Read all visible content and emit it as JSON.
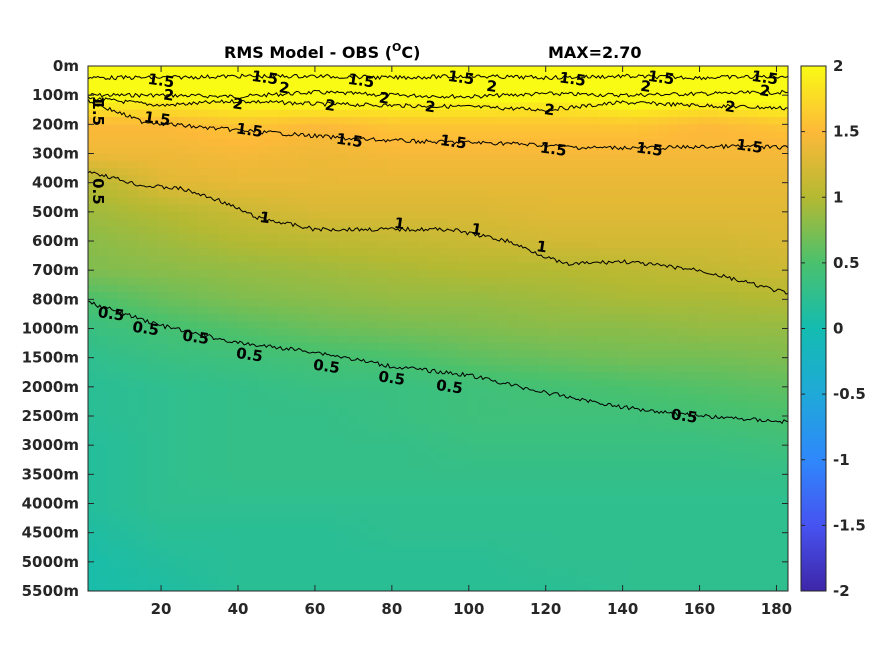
{
  "chart_data": {
    "type": "heatmap",
    "title": "RMS Model - OBS (",
    "title_degree": "O",
    "title_unit": "C)",
    "max_label": "MAX=2.70",
    "x_ticks": [
      20,
      40,
      60,
      80,
      100,
      120,
      140,
      160,
      180
    ],
    "xlim": [
      1,
      183
    ],
    "y_tick_labels": [
      "0m",
      "100m",
      "200m",
      "300m",
      "400m",
      "500m",
      "600m",
      "700m",
      "800m",
      "1000m",
      "1500m",
      "2000m",
      "2500m",
      "3000m",
      "3500m",
      "4000m",
      "4500m",
      "5000m",
      "5500m"
    ],
    "colorbar": {
      "range": [
        -2,
        2
      ],
      "ticks": [
        "2",
        "1.5",
        "1",
        "0.5",
        "0",
        "-0.5",
        "-1",
        "-1.5",
        "-2"
      ]
    },
    "field_levels": [
      {
        "level": 0,
        "values": [
          2.4,
          2.3,
          2.4,
          2.5,
          2.4,
          2.5,
          2.4,
          2.6,
          2.5,
          2.4
        ]
      },
      {
        "level": 1,
        "values": [
          2.1,
          2.0,
          2.1,
          2.2,
          2.1,
          2.1,
          2.0,
          2.2,
          2.1,
          2.2
        ]
      },
      {
        "level": 2,
        "values": [
          1.5,
          1.5,
          1.6,
          1.5,
          1.6,
          1.6,
          1.6,
          1.6,
          1.5,
          1.6
        ]
      },
      {
        "level": 3,
        "values": [
          1.4,
          1.4,
          1.45,
          1.4,
          1.45,
          1.45,
          1.45,
          1.45,
          1.45,
          1.45
        ]
      },
      {
        "level": 4,
        "values": [
          1.0,
          1.3,
          1.35,
          1.35,
          1.35,
          1.35,
          1.35,
          1.35,
          1.35,
          1.35
        ]
      },
      {
        "level": 5,
        "values": [
          0.9,
          1.0,
          1.15,
          1.25,
          1.25,
          1.25,
          1.3,
          1.3,
          1.3,
          1.3
        ]
      },
      {
        "level": 6,
        "values": [
          0.8,
          0.9,
          1.0,
          1.05,
          1.1,
          1.15,
          1.2,
          1.2,
          1.2,
          1.25
        ]
      },
      {
        "level": 7,
        "values": [
          0.75,
          0.8,
          0.85,
          0.9,
          0.95,
          1.0,
          1.0,
          1.05,
          1.1,
          1.15
        ]
      },
      {
        "level": 8,
        "values": [
          0.5,
          0.65,
          0.75,
          0.8,
          0.85,
          0.85,
          0.9,
          0.95,
          0.95,
          1.0
        ]
      },
      {
        "level": 9,
        "values": [
          0.35,
          0.45,
          0.55,
          0.65,
          0.7,
          0.75,
          0.8,
          0.8,
          0.85,
          0.85
        ]
      },
      {
        "level": 10,
        "values": [
          0.25,
          0.35,
          0.4,
          0.45,
          0.5,
          0.6,
          0.65,
          0.7,
          0.7,
          0.75
        ]
      },
      {
        "level": 11,
        "values": [
          0.2,
          0.25,
          0.3,
          0.35,
          0.35,
          0.4,
          0.45,
          0.5,
          0.55,
          0.6
        ]
      },
      {
        "level": 12,
        "values": [
          0.2,
          0.25,
          0.3,
          0.3,
          0.35,
          0.4,
          0.4,
          0.4,
          0.45,
          0.5
        ]
      },
      {
        "level": 13,
        "values": [
          0.15,
          0.25,
          0.3,
          0.3,
          0.3,
          0.35,
          0.35,
          0.35,
          0.35,
          0.4
        ]
      },
      {
        "level": 14,
        "values": [
          0.15,
          0.25,
          0.3,
          0.3,
          0.3,
          0.3,
          0.3,
          0.3,
          0.3,
          0.3
        ]
      },
      {
        "level": 15,
        "values": [
          0.15,
          0.25,
          0.25,
          0.25,
          0.25,
          0.25,
          0.25,
          0.25,
          0.25,
          0.25
        ]
      },
      {
        "level": 16,
        "values": [
          0.1,
          0.2,
          0.2,
          0.2,
          0.25,
          0.25,
          0.25,
          0.25,
          0.25,
          0.25
        ]
      },
      {
        "level": 17,
        "values": [
          0.05,
          0.15,
          0.2,
          0.2,
          0.2,
          0.2,
          0.25,
          0.25,
          0.25,
          0.25
        ]
      },
      {
        "level": 18,
        "values": [
          0.05,
          0.1,
          0.2,
          0.2,
          0.2,
          0.2,
          0.2,
          0.25,
          0.25,
          0.25
        ]
      }
    ],
    "contours": [
      {
        "level": "2",
        "points": [
          [
            1,
            1.0
          ],
          [
            20,
            1.0
          ],
          [
            40,
            1.05
          ],
          [
            60,
            0.9
          ],
          [
            80,
            1.0
          ],
          [
            100,
            1.05
          ],
          [
            120,
            0.95
          ],
          [
            140,
            1.0
          ],
          [
            160,
            0.95
          ],
          [
            183,
            0.9
          ]
        ]
      },
      {
        "level": "2",
        "points": [
          [
            1,
            1.1
          ],
          [
            20,
            1.35
          ],
          [
            40,
            1.2
          ],
          [
            60,
            1.3
          ],
          [
            80,
            1.35
          ],
          [
            100,
            1.4
          ],
          [
            120,
            1.5
          ],
          [
            140,
            1.25
          ],
          [
            160,
            1.35
          ],
          [
            183,
            1.45
          ]
        ]
      },
      {
        "level": "1.5",
        "points": [
          [
            1,
            0.4
          ],
          [
            20,
            0.4
          ],
          [
            40,
            0.35
          ],
          [
            60,
            0.35
          ],
          [
            80,
            0.4
          ],
          [
            100,
            0.35
          ],
          [
            120,
            0.4
          ],
          [
            140,
            0.35
          ],
          [
            160,
            0.4
          ],
          [
            183,
            0.35
          ]
        ]
      },
      {
        "level": "1.5",
        "points": [
          [
            1,
            1.2
          ],
          [
            15,
            1.9
          ],
          [
            30,
            2.1
          ],
          [
            50,
            2.3
          ],
          [
            70,
            2.5
          ],
          [
            90,
            2.6
          ],
          [
            110,
            2.65
          ],
          [
            130,
            2.8
          ],
          [
            150,
            2.8
          ],
          [
            170,
            2.75
          ],
          [
            183,
            2.8
          ]
        ]
      },
      {
        "level": "1",
        "points": [
          [
            1,
            3.6
          ],
          [
            15,
            4.1
          ],
          [
            25,
            4.2
          ],
          [
            35,
            4.6
          ],
          [
            45,
            5.2
          ],
          [
            60,
            5.6
          ],
          [
            80,
            5.6
          ],
          [
            95,
            5.6
          ],
          [
            110,
            6.0
          ],
          [
            125,
            6.8
          ],
          [
            140,
            6.7
          ],
          [
            160,
            7.0
          ],
          [
            183,
            7.8
          ]
        ]
      },
      {
        "level": "0.5",
        "points": [
          [
            1,
            8.1
          ],
          [
            20,
            8.9
          ],
          [
            40,
            9.5
          ],
          [
            60,
            9.8
          ],
          [
            80,
            10.3
          ],
          [
            100,
            10.6
          ],
          [
            120,
            11.2
          ],
          [
            140,
            11.7
          ],
          [
            160,
            12.0
          ],
          [
            183,
            12.2
          ]
        ]
      }
    ],
    "contour_labels": [
      {
        "text": "1.5",
        "x": 20,
        "y": 0.5
      },
      {
        "text": "1.5",
        "x": 47,
        "y": 0.4
      },
      {
        "text": "1.5",
        "x": 72,
        "y": 0.5
      },
      {
        "text": "1.5",
        "x": 98,
        "y": 0.4
      },
      {
        "text": "1.5",
        "x": 127,
        "y": 0.45
      },
      {
        "text": "1.5",
        "x": 150,
        "y": 0.4
      },
      {
        "text": "1.5",
        "x": 177,
        "y": 0.4
      },
      {
        "text": "2",
        "x": 22,
        "y": 1.0
      },
      {
        "text": "2",
        "x": 52,
        "y": 0.75
      },
      {
        "text": "2",
        "x": 78,
        "y": 1.1
      },
      {
        "text": "2",
        "x": 106,
        "y": 0.7
      },
      {
        "text": "2",
        "x": 146,
        "y": 0.7
      },
      {
        "text": "2",
        "x": 177,
        "y": 0.85
      },
      {
        "text": "2",
        "x": 40,
        "y": 1.3
      },
      {
        "text": "2",
        "x": 64,
        "y": 1.35
      },
      {
        "text": "2",
        "x": 90,
        "y": 1.4
      },
      {
        "text": "2",
        "x": 121,
        "y": 1.5
      },
      {
        "text": "2",
        "x": 168,
        "y": 1.4
      },
      {
        "text": "1.5",
        "x": 19,
        "y": 1.8
      },
      {
        "text": "1.5",
        "x": 43,
        "y": 2.2
      },
      {
        "text": "1.5",
        "x": 69,
        "y": 2.55
      },
      {
        "text": "1.5",
        "x": 96,
        "y": 2.6
      },
      {
        "text": "1.5",
        "x": 122,
        "y": 2.85
      },
      {
        "text": "1.5",
        "x": 147,
        "y": 2.85
      },
      {
        "text": "1.5",
        "x": 173,
        "y": 2.75
      },
      {
        "text": "1",
        "x": 47,
        "y": 5.2
      },
      {
        "text": "1",
        "x": 82,
        "y": 5.4
      },
      {
        "text": "1",
        "x": 102,
        "y": 5.6
      },
      {
        "text": "1",
        "x": 119,
        "y": 6.2
      },
      {
        "text": "0.5",
        "x": 7,
        "y": 8.5
      },
      {
        "text": "0.5",
        "x": 16,
        "y": 9.0
      },
      {
        "text": "0.5",
        "x": 29,
        "y": 9.3
      },
      {
        "text": "0.5",
        "x": 43,
        "y": 9.9
      },
      {
        "text": "0.5",
        "x": 63,
        "y": 10.3
      },
      {
        "text": "0.5",
        "x": 80,
        "y": 10.7
      },
      {
        "text": "0.5",
        "x": 95,
        "y": 11.0
      },
      {
        "text": "0.5",
        "x": 156,
        "y": 12.0
      }
    ],
    "left_edge_labels": [
      {
        "text": "1",
        "y": 1.2
      },
      {
        "text": "1.5",
        "y": 1.6
      },
      {
        "text": "0.5",
        "y": 4.3
      }
    ]
  }
}
